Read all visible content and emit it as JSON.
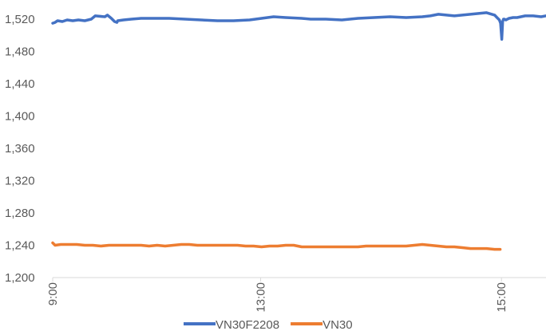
{
  "chart_data": {
    "type": "line",
    "title": "",
    "xlabel": "",
    "ylabel": "",
    "ylim": [
      1200,
      1530
    ],
    "y_ticks": [
      1200,
      1240,
      1280,
      1320,
      1360,
      1400,
      1440,
      1480,
      1520
    ],
    "y_tick_labels": [
      "1,200",
      "1,240",
      "1,280",
      "1,320",
      "1,360",
      "1,400",
      "1,440",
      "1,480",
      "1,520"
    ],
    "x_ticks": [
      "9:00",
      "13:00",
      "15:00"
    ],
    "x_tick_positions": [
      0,
      0.4216,
      0.9097
    ],
    "grid": false,
    "legend_position": "bottom",
    "series": [
      {
        "name": "VN30F2208",
        "color": "#4472C4",
        "x": [
          0.0,
          0.0049,
          0.0098,
          0.0195,
          0.0293,
          0.0407,
          0.0521,
          0.0651,
          0.0781,
          0.0863,
          0.1059,
          0.1108,
          0.1189,
          0.1254,
          0.1303,
          0.1319,
          0.1433,
          0.1596,
          0.1791,
          0.2036,
          0.2362,
          0.2687,
          0.3013,
          0.3339,
          0.3665,
          0.399,
          0.4235,
          0.4479,
          0.4723,
          0.5049,
          0.5228,
          0.5537,
          0.5863,
          0.6189,
          0.6515,
          0.684,
          0.7166,
          0.7492,
          0.7655,
          0.7818,
          0.798,
          0.8143,
          0.8306,
          0.8469,
          0.8632,
          0.8795,
          0.8958,
          0.9007,
          0.9055,
          0.908,
          0.9104,
          0.9121,
          0.9137,
          0.9153,
          0.9186,
          0.9251,
          0.9332,
          0.9414,
          0.9577,
          0.9739,
          0.9902,
          1.0
        ],
        "values": [
          1515,
          1516,
          1518,
          1517,
          1519,
          1518,
          1519,
          1518,
          1520,
          1524,
          1523,
          1525,
          1521,
          1517,
          1516,
          1518,
          1519,
          1520,
          1521,
          1521,
          1521,
          1520,
          1519,
          1518,
          1518,
          1519,
          1521,
          1523,
          1522,
          1521,
          1520,
          1520,
          1519,
          1521,
          1522,
          1523,
          1522,
          1523,
          1524,
          1526,
          1525,
          1524,
          1525,
          1526,
          1527,
          1528,
          1525,
          1522,
          1519,
          1515,
          1495,
          1517,
          1520,
          1520,
          1519,
          1521,
          1522,
          1522,
          1524,
          1524,
          1523,
          1524
        ]
      },
      {
        "name": "VN30",
        "color": "#ED7D31",
        "x": [
          0.0,
          0.0049,
          0.0163,
          0.0326,
          0.0489,
          0.0651,
          0.0814,
          0.0977,
          0.114,
          0.1303,
          0.1465,
          0.1628,
          0.1791,
          0.1954,
          0.2117,
          0.228,
          0.2443,
          0.2606,
          0.2769,
          0.2932,
          0.3094,
          0.3257,
          0.342,
          0.3583,
          0.3746,
          0.3909,
          0.4072,
          0.4235,
          0.4397,
          0.456,
          0.4723,
          0.4886,
          0.5049,
          0.5212,
          0.5375,
          0.5538,
          0.57,
          0.5863,
          0.6026,
          0.6189,
          0.6352,
          0.6515,
          0.6678,
          0.684,
          0.7003,
          0.7166,
          0.7329,
          0.7492,
          0.7655,
          0.7818,
          0.798,
          0.8143,
          0.8306,
          0.8469,
          0.8632,
          0.8795,
          0.8958,
          0.9072
        ],
        "values": [
          1243,
          1240,
          1241,
          1241,
          1241,
          1240,
          1240,
          1239,
          1240,
          1240,
          1240,
          1240,
          1240,
          1239,
          1240,
          1239,
          1240,
          1241,
          1241,
          1240,
          1240,
          1240,
          1240,
          1240,
          1240,
          1239,
          1239,
          1238,
          1239,
          1239,
          1240,
          1240,
          1238,
          1238,
          1238,
          1238,
          1238,
          1238,
          1238,
          1238,
          1239,
          1239,
          1239,
          1239,
          1239,
          1239,
          1240,
          1241,
          1240,
          1239,
          1238,
          1238,
          1237,
          1236,
          1236,
          1236,
          1235,
          1235
        ]
      }
    ]
  }
}
